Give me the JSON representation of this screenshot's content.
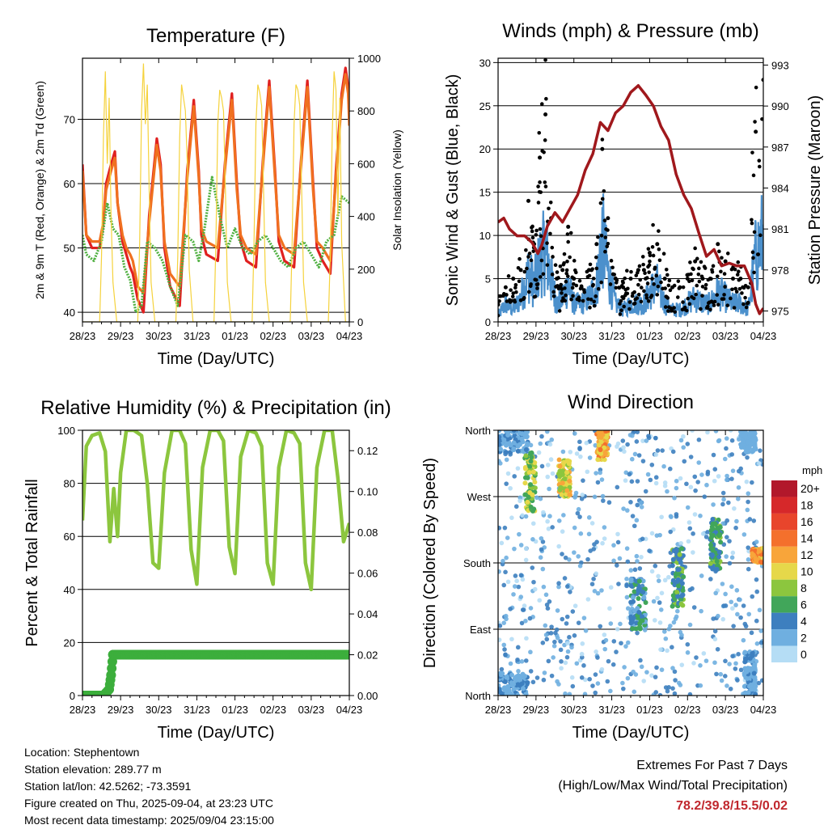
{
  "xticks": [
    "28/23",
    "29/23",
    "30/23",
    "31/23",
    "01/23",
    "02/23",
    "03/23",
    "04/23"
  ],
  "footer": {
    "location": "Location: Stephentown",
    "elevation": "Station elevation: 289.77 m",
    "latlon": "Station lat/lon: 42.5262; -73.3591",
    "created": "Figure created on Thu, 2025-09-04, at 23:23 UTC",
    "recent": "Most recent data timestamp: 2025/09/04 23:15:00",
    "extremes_title": "Extremes For Past 7 Days",
    "extremes_sub": "(High/Low/Max Wind/Total Precipitation)",
    "extremes_value": "78.2/39.8/15.5/0.02"
  },
  "colors": {
    "temp2m": "#e02020",
    "temp9m": "#f07020",
    "dewpoint": "#4fb040",
    "solar": "#f5d23c",
    "wind": "#4b90cc",
    "gust": "#000000",
    "pressure": "#a0181c",
    "rh": "#8cc63e",
    "rain": "#3cae3c"
  },
  "chart_data": [
    {
      "type": "line",
      "title": "Temperature (F)",
      "xlabel": "Time (Day/UTC)",
      "ylabel": "2m & 9m T (Red, Orange) & 2m Td (Green)",
      "ylabel_right": "Solar Insolation (Yellow)",
      "ylim": [
        38.5,
        79.5
      ],
      "yticks": [
        40,
        50,
        60,
        70
      ],
      "ylim_right": [
        0,
        1000
      ],
      "yticks_right": [
        0,
        200,
        400,
        600,
        800,
        1000
      ],
      "grid": true,
      "xlim": [
        0,
        7
      ],
      "series": [
        {
          "name": "2m T",
          "color": "#e02020",
          "x": [
            0,
            0.1,
            0.25,
            0.45,
            0.55,
            0.62,
            0.75,
            0.85,
            0.92,
            1.05,
            1.15,
            1.25,
            1.32,
            1.45,
            1.6,
            1.75,
            1.95,
            2.05,
            2.15,
            2.3,
            2.55,
            2.75,
            2.92,
            3.05,
            3.12,
            3.25,
            3.55,
            3.75,
            3.92,
            4.05,
            4.15,
            4.3,
            4.55,
            4.75,
            4.9,
            5.05,
            5.15,
            5.3,
            5.55,
            5.75,
            5.9,
            6.05,
            6.15,
            6.3,
            6.5,
            6.65,
            6.8,
            6.9,
            6.97,
            7
          ],
          "y": [
            63,
            52,
            50,
            50,
            54,
            60,
            63,
            65,
            57,
            51,
            49,
            47,
            46,
            42,
            40,
            55,
            67,
            63,
            50,
            44,
            41,
            62,
            73,
            62,
            52,
            49,
            48,
            64,
            74,
            60,
            51,
            48,
            47,
            65,
            76,
            62,
            51,
            48,
            47,
            65,
            76,
            60,
            50,
            48,
            46,
            62,
            74,
            78,
            75,
            70
          ]
        },
        {
          "name": "9m T",
          "color": "#f07020",
          "x": [
            0,
            0.1,
            0.25,
            0.45,
            0.55,
            0.62,
            0.75,
            0.85,
            0.92,
            1.05,
            1.15,
            1.25,
            1.32,
            1.45,
            1.6,
            1.75,
            1.95,
            2.05,
            2.15,
            2.3,
            2.55,
            2.75,
            2.92,
            3.05,
            3.12,
            3.25,
            3.55,
            3.75,
            3.92,
            4.05,
            4.15,
            4.3,
            4.55,
            4.75,
            4.9,
            5.05,
            5.15,
            5.3,
            5.55,
            5.75,
            5.9,
            6.05,
            6.15,
            6.3,
            6.5,
            6.65,
            6.8,
            6.9,
            6.97,
            7
          ],
          "y": [
            62,
            52,
            51,
            51,
            54,
            59,
            62,
            64,
            57,
            52,
            50,
            49,
            48,
            44,
            43,
            54,
            66,
            62,
            51,
            46,
            44,
            61,
            72,
            61,
            53,
            51,
            50,
            63,
            73,
            59,
            52,
            50,
            49,
            64,
            75,
            61,
            52,
            50,
            49,
            64,
            75,
            59,
            51,
            50,
            48,
            61,
            73,
            77,
            74,
            69
          ]
        },
        {
          "name": "2m Td",
          "color": "#4fb040",
          "x": [
            0,
            0.1,
            0.3,
            0.5,
            0.65,
            0.8,
            0.95,
            1.1,
            1.25,
            1.4,
            1.55,
            1.7,
            1.9,
            2.1,
            2.3,
            2.5,
            2.7,
            2.9,
            3.05,
            3.2,
            3.4,
            3.6,
            3.8,
            4.0,
            4.2,
            4.4,
            4.6,
            4.8,
            5.0,
            5.2,
            5.4,
            5.6,
            5.8,
            6.0,
            6.2,
            6.4,
            6.6,
            6.8,
            7
          ],
          "y": [
            52,
            49,
            48,
            51,
            57,
            53,
            52,
            47,
            45,
            40,
            41,
            51,
            50,
            48,
            44,
            41,
            52,
            51,
            48,
            53,
            61,
            55,
            50,
            53,
            50,
            49,
            51,
            52,
            50,
            48,
            47,
            50,
            51,
            49,
            47,
            51,
            52,
            58,
            57
          ]
        },
        {
          "name": "Solar",
          "color": "#f5d23c",
          "axis": "right",
          "x": [
            0,
            0.45,
            0.5,
            0.55,
            0.6,
            0.65,
            0.7,
            0.75,
            0.8,
            0.9,
            1.45,
            1.5,
            1.55,
            1.6,
            1.65,
            1.7,
            1.75,
            1.8,
            1.9,
            2.45,
            2.5,
            2.55,
            2.6,
            2.65,
            2.7,
            2.75,
            2.8,
            2.9,
            3.45,
            3.5,
            3.55,
            3.6,
            3.65,
            3.7,
            3.75,
            3.8,
            3.9,
            4.45,
            4.5,
            4.55,
            4.6,
            4.65,
            4.7,
            4.75,
            4.8,
            4.9,
            5.45,
            5.5,
            5.55,
            5.6,
            5.65,
            5.7,
            5.75,
            5.8,
            5.9,
            6.45,
            6.5,
            6.55,
            6.6,
            6.65,
            6.7,
            6.75,
            6.8,
            6.9,
            7
          ],
          "y": [
            0,
            0,
            250,
            700,
            950,
            600,
            850,
            400,
            150,
            0,
            0,
            300,
            800,
            980,
            750,
            900,
            500,
            150,
            0,
            0,
            250,
            700,
            900,
            850,
            800,
            600,
            200,
            0,
            0,
            300,
            750,
            880,
            850,
            800,
            500,
            150,
            0,
            0,
            300,
            750,
            900,
            870,
            820,
            500,
            150,
            0,
            0,
            300,
            750,
            900,
            880,
            820,
            500,
            150,
            0,
            0,
            250,
            700,
            950,
            880,
            400,
            850,
            300,
            0,
            0
          ]
        }
      ]
    },
    {
      "type": "line",
      "title": "Winds (mph) & Pressure (mb)",
      "xlabel": "Time (Day/UTC)",
      "ylabel": "Sonic Wind & Gust (Blue, Black)",
      "ylabel_right": "Station Pressure (Maroon)",
      "ylim": [
        0,
        30.5
      ],
      "yticks": [
        0,
        5,
        10,
        15,
        20,
        25,
        30
      ],
      "ylim_right": [
        974.2,
        993.5
      ],
      "yticks_right": [
        975,
        978,
        981,
        984,
        987,
        990,
        993
      ],
      "grid": true,
      "xlim": [
        0,
        7
      ],
      "series": [
        {
          "name": "Wind",
          "color": "#4b90cc",
          "x": [
            0,
            0.2,
            0.4,
            0.6,
            0.8,
            0.95,
            1.1,
            1.25,
            1.4,
            1.55,
            1.7,
            1.85,
            2.0,
            2.2,
            2.4,
            2.6,
            2.75,
            2.9,
            3.1,
            3.3,
            3.5,
            3.7,
            3.85,
            4.0,
            4.2,
            4.4,
            4.6,
            4.8,
            5.0,
            5.2,
            5.4,
            5.6,
            5.8,
            6.0,
            6.2,
            6.4,
            6.6,
            6.8,
            7
          ],
          "y": [
            1,
            3,
            2,
            4,
            8,
            6,
            10,
            12,
            7,
            3,
            4,
            6,
            3,
            3,
            4,
            6,
            14,
            8,
            3,
            2,
            3,
            3,
            3,
            5,
            6,
            3,
            2,
            2,
            3,
            4,
            3,
            3,
            5,
            4,
            3,
            3,
            2,
            11,
            14
          ]
        },
        {
          "name": "Gust",
          "color": "#000000",
          "x": [
            0,
            0.2,
            0.4,
            0.6,
            0.8,
            0.95,
            1.1,
            1.25,
            1.4,
            1.55,
            1.7,
            1.85,
            2.0,
            2.2,
            2.4,
            2.6,
            2.75,
            2.9,
            3.1,
            3.3,
            3.5,
            3.7,
            3.85,
            4.0,
            4.2,
            4.4,
            4.6,
            4.8,
            5.0,
            5.2,
            5.4,
            5.6,
            5.8,
            6.0,
            6.2,
            6.4,
            6.6,
            6.8,
            7
          ],
          "y": [
            2,
            4,
            5,
            6,
            14,
            9,
            19,
            24,
            12,
            5,
            6,
            11,
            5,
            4,
            6,
            9,
            20,
            12,
            5,
            4,
            5,
            6,
            6,
            8,
            9,
            5,
            4,
            4,
            5,
            7,
            5,
            5,
            9,
            7,
            5,
            5,
            4,
            22,
            28
          ]
        },
        {
          "name": "Pressure",
          "color": "#a0181c",
          "axis": "right",
          "x": [
            0,
            0.15,
            0.3,
            0.5,
            0.7,
            0.9,
            1.05,
            1.15,
            1.3,
            1.5,
            1.7,
            1.9,
            2.1,
            2.3,
            2.5,
            2.7,
            2.9,
            3.1,
            3.3,
            3.5,
            3.7,
            3.9,
            4.1,
            4.3,
            4.5,
            4.7,
            4.9,
            5.1,
            5.3,
            5.5,
            5.7,
            5.9,
            6.1,
            6.3,
            6.5,
            6.7,
            6.8,
            6.9,
            7
          ],
          "y": [
            981.5,
            981.8,
            981,
            980.5,
            980.5,
            980,
            979.2,
            979.8,
            981.2,
            982.2,
            981.5,
            982.5,
            983.5,
            985.3,
            986.5,
            988.8,
            988.2,
            989.5,
            990,
            991,
            991.5,
            990.8,
            990,
            988.5,
            987.5,
            985,
            983.5,
            982.5,
            980.7,
            979,
            979.5,
            978.3,
            978.5,
            978.3,
            978.3,
            977,
            975.5,
            974.8,
            975.2
          ]
        }
      ]
    },
    {
      "type": "line",
      "title": "Relative Humidity (%) & Precipitation (in)",
      "xlabel": "Time (Day/UTC)",
      "ylabel": "Percent & Total Rainfall",
      "ylim": [
        0,
        100
      ],
      "yticks": [
        0,
        20,
        40,
        60,
        80,
        100
      ],
      "ylim_right": [
        0,
        0.13
      ],
      "yticks_right": [
        "0.00",
        "0.02",
        "0.04",
        "0.06",
        "0.08",
        "0.10",
        "0.12"
      ],
      "grid": true,
      "xlim": [
        0,
        7
      ],
      "series": [
        {
          "name": "RH",
          "color": "#8cc63e",
          "x": [
            0,
            0.1,
            0.25,
            0.45,
            0.6,
            0.72,
            0.82,
            0.92,
            1.0,
            1.15,
            1.35,
            1.55,
            1.7,
            1.85,
            2.0,
            2.15,
            2.35,
            2.55,
            2.7,
            2.85,
            3.0,
            3.15,
            3.35,
            3.55,
            3.7,
            3.85,
            4.0,
            4.15,
            4.35,
            4.55,
            4.7,
            4.85,
            5.0,
            5.15,
            5.35,
            5.55,
            5.7,
            5.85,
            6.0,
            6.15,
            6.35,
            6.55,
            6.7,
            6.85,
            7
          ],
          "y": [
            66,
            94,
            98,
            99,
            92,
            58,
            78,
            60,
            84,
            100,
            100,
            98,
            80,
            50,
            48,
            84,
            100,
            100,
            95,
            55,
            42,
            86,
            100,
            100,
            96,
            56,
            46,
            90,
            100,
            99,
            94,
            50,
            42,
            86,
            100,
            99,
            95,
            50,
            40,
            86,
            100,
            100,
            82,
            58,
            65
          ]
        },
        {
          "name": "Rain",
          "color": "#3cae3c",
          "axis": "right",
          "x": [
            0,
            0.55,
            0.7,
            0.75,
            0.8,
            7
          ],
          "y": [
            0,
            0,
            0.003,
            0.01,
            0.02,
            0.02
          ]
        }
      ]
    },
    {
      "type": "scatter",
      "title": "Wind Direction",
      "xlabel": "Time (Day/UTC)",
      "ylabel": "Direction (Colored By Speed)",
      "yticks": [
        "North",
        "East",
        "South",
        "West",
        "North"
      ],
      "ylim": [
        0,
        360
      ],
      "xlim": [
        0,
        7
      ],
      "grid": true,
      "colorbar": {
        "title": "mph",
        "labels": [
          "20+",
          "18",
          "16",
          "14",
          "12",
          "10",
          "8",
          "6",
          "4",
          "2",
          "0"
        ],
        "colors": [
          "#b2182b",
          "#d6282a",
          "#e8452c",
          "#f4702c",
          "#f8a53a",
          "#e6d84a",
          "#8cc63e",
          "#41a65a",
          "#3d7fbf",
          "#6fafe0",
          "#b5ddf5"
        ]
      },
      "clusters": [
        {
          "x": [
            0.0,
            0.8
          ],
          "y": [
            0,
            30
          ],
          "speed": [
            1,
            4
          ]
        },
        {
          "x": [
            0.0,
            0.8
          ],
          "y": [
            330,
            360
          ],
          "speed": [
            1,
            4
          ]
        },
        {
          "x": [
            0.7,
            1.0
          ],
          "y": [
            250,
            330
          ],
          "speed": [
            5,
            11
          ]
        },
        {
          "x": [
            1.6,
            1.9
          ],
          "y": [
            270,
            320
          ],
          "speed": [
            8,
            13
          ]
        },
        {
          "x": [
            2.6,
            2.9
          ],
          "y": [
            320,
            360
          ],
          "speed": [
            9,
            14
          ]
        },
        {
          "x": [
            3.5,
            3.9
          ],
          "y": [
            90,
            160
          ],
          "speed": [
            2,
            6
          ]
        },
        {
          "x": [
            4.6,
            4.9
          ],
          "y": [
            120,
            200
          ],
          "speed": [
            3,
            8
          ]
        },
        {
          "x": [
            5.6,
            5.9
          ],
          "y": [
            170,
            240
          ],
          "speed": [
            4,
            8
          ]
        },
        {
          "x": [
            6.7,
            7.0
          ],
          "y": [
            180,
            200
          ],
          "speed": [
            10,
            15
          ]
        },
        {
          "x": [
            6.5,
            6.8
          ],
          "y": [
            0,
            60
          ],
          "speed": [
            1,
            4
          ]
        },
        {
          "x": [
            6.4,
            6.8
          ],
          "y": [
            330,
            360
          ],
          "speed": [
            1,
            3
          ]
        }
      ]
    }
  ]
}
